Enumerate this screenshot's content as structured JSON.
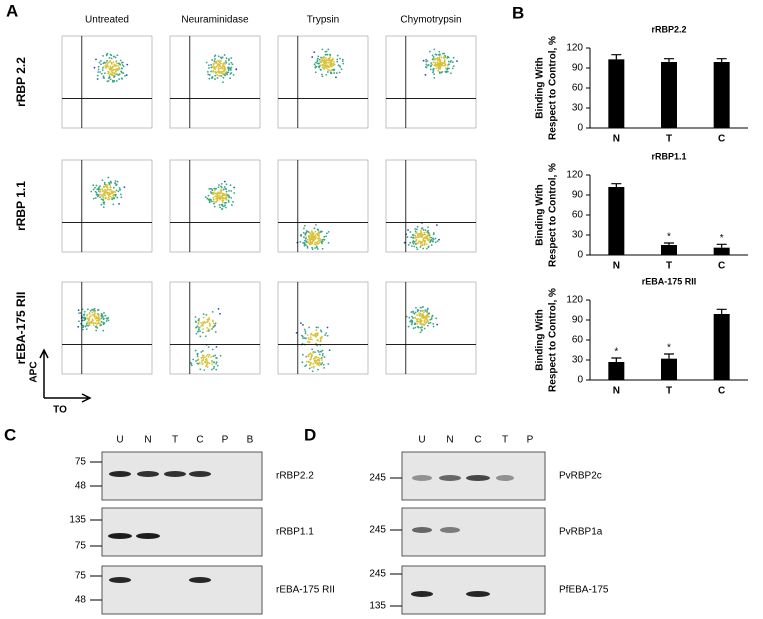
{
  "panel_labels": [
    "A",
    "B",
    "C",
    "D"
  ],
  "panel_a": {
    "columns": [
      "Untreated",
      "Neuraminidase",
      "Trypsin",
      "Chymotrypsin"
    ],
    "rows": [
      "rRBP 2.2",
      "rRBP 1.1",
      "rEBA-175 RII"
    ],
    "axis_y": "APC",
    "axis_x": "TO"
  },
  "chart_data": [
    {
      "type": "bar",
      "title": "rRBP2.2",
      "ylabel": [
        "Binding With",
        "Respect to Control, %"
      ],
      "categories": [
        "N",
        "T",
        "C"
      ],
      "values": [
        103,
        99,
        99
      ],
      "errors": [
        7,
        5,
        5
      ],
      "significance": [
        null,
        null,
        null
      ],
      "color": "#000000",
      "ylim": [
        0,
        120
      ],
      "yticks": [
        0,
        30,
        60,
        90,
        120
      ]
    },
    {
      "type": "bar",
      "title": "rRBP1.1",
      "ylabel": [
        "Binding With",
        "Respect to Control, %"
      ],
      "categories": [
        "N",
        "T",
        "C"
      ],
      "values": [
        102,
        15,
        11
      ],
      "errors": [
        5,
        3,
        5
      ],
      "significance": [
        null,
        "*",
        "*"
      ],
      "color": "#000000",
      "ylim": [
        0,
        120
      ],
      "yticks": [
        0,
        30,
        60,
        90,
        120
      ]
    },
    {
      "type": "bar",
      "title": "rEBA-175 RII",
      "ylabel": [
        "Binding With",
        "Respect to Control, %"
      ],
      "categories": [
        "N",
        "T",
        "C"
      ],
      "values": [
        27,
        32,
        99
      ],
      "errors": [
        6,
        7,
        7
      ],
      "significance": [
        "*",
        "*",
        null
      ],
      "color": "#000000",
      "ylim": [
        0,
        120
      ],
      "yticks": [
        0,
        30,
        60,
        90,
        120
      ]
    }
  ],
  "panel_c": {
    "lanes": [
      "U",
      "N",
      "T",
      "C",
      "P",
      "B"
    ],
    "blots": [
      {
        "label": "rRBP2.2",
        "markers": [
          75,
          48
        ]
      },
      {
        "label": "rRBP1.1",
        "markers": [
          135,
          75
        ]
      },
      {
        "label": "rEBA-175 RII",
        "markers": [
          75,
          48
        ]
      }
    ]
  },
  "panel_d": {
    "lanes": [
      "U",
      "N",
      "C",
      "T",
      "P"
    ],
    "blots": [
      {
        "label": "PvRBP2c",
        "markers": [
          245
        ]
      },
      {
        "label": "PvRBP1a",
        "markers": [
          245
        ]
      },
      {
        "label": "PfEBA-175",
        "markers": [
          245,
          135
        ]
      }
    ]
  }
}
